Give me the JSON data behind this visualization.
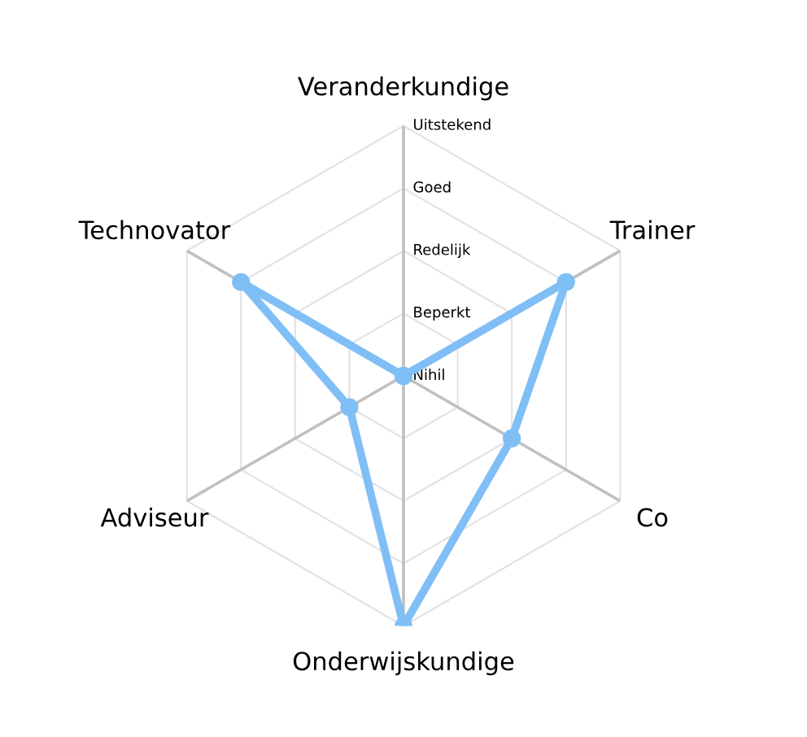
{
  "chart_data": {
    "type": "radar",
    "categories": [
      "Veranderkundige",
      "Trainer",
      "Co",
      "Onderwijskundige",
      "Adviseur",
      "Technovator"
    ],
    "series": [
      {
        "color": "#7fbff5",
        "values": [
          0,
          3,
          2,
          4,
          1,
          3
        ]
      }
    ],
    "ylim": [
      0,
      4
    ],
    "yticks": [
      {
        "value": 0,
        "label": "Nihil"
      },
      {
        "value": 1,
        "label": "Beperkt"
      },
      {
        "value": 2,
        "label": "Redelijk"
      },
      {
        "value": 3,
        "label": "Goed"
      },
      {
        "value": 4,
        "label": "Uitstekend"
      }
    ],
    "grid": true,
    "marker": "circle",
    "line_style": "solid"
  }
}
